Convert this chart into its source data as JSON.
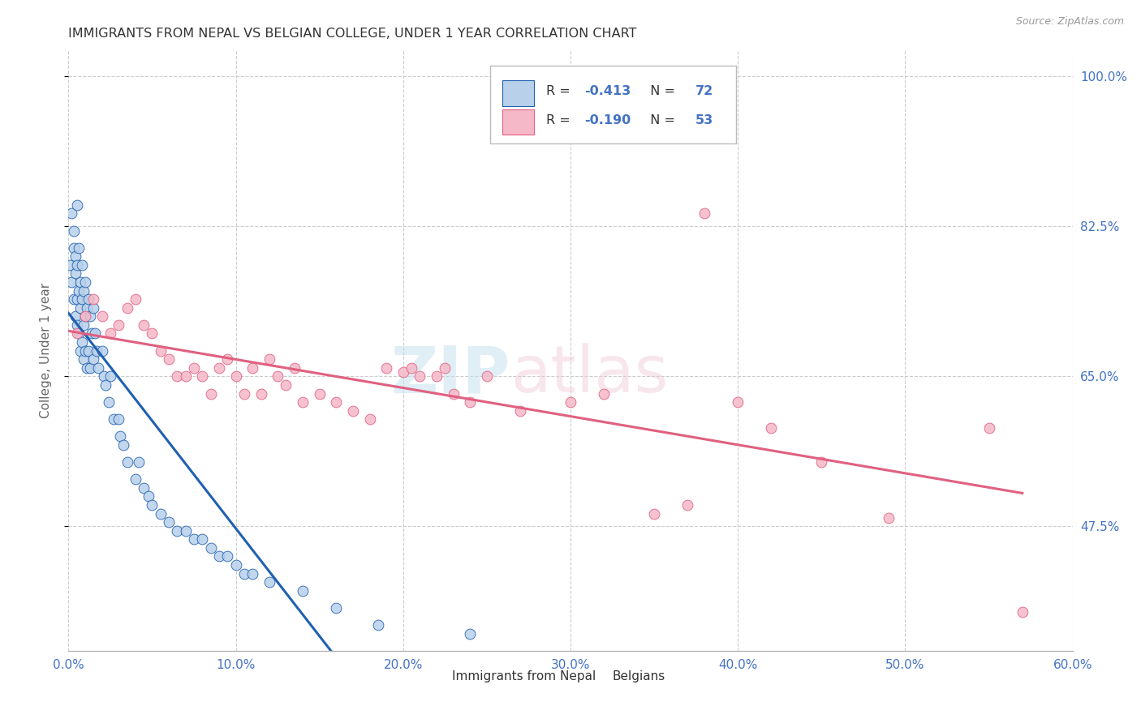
{
  "title": "IMMIGRANTS FROM NEPAL VS BELGIAN COLLEGE, UNDER 1 YEAR CORRELATION CHART",
  "source": "Source: ZipAtlas.com",
  "ylabel": "College, Under 1 year",
  "legend_label1": "Immigrants from Nepal",
  "legend_label2": "Belgians",
  "r1": "-0.413",
  "n1": "72",
  "r2": "-0.190",
  "n2": "53",
  "xmin": 0.0,
  "xmax": 60.0,
  "ymin": 33.0,
  "ymax": 103.0,
  "yticks": [
    47.5,
    65.0,
    82.5,
    100.0
  ],
  "xticks": [
    0.0,
    10.0,
    20.0,
    30.0,
    40.0,
    50.0,
    60.0
  ],
  "color_blue": "#b8d0ea",
  "color_pink": "#f5b8c8",
  "line_blue": "#2060b0",
  "line_pink": "#e06080",
  "background": "#ffffff",
  "grid_color": "#cccccc",
  "title_color": "#333333",
  "axis_label_color": "#4472c4",
  "nepal_x": [
    0.1,
    0.2,
    0.2,
    0.3,
    0.3,
    0.3,
    0.4,
    0.4,
    0.4,
    0.5,
    0.5,
    0.5,
    0.5,
    0.6,
    0.6,
    0.6,
    0.7,
    0.7,
    0.7,
    0.8,
    0.8,
    0.8,
    0.9,
    0.9,
    0.9,
    1.0,
    1.0,
    1.0,
    1.1,
    1.1,
    1.2,
    1.2,
    1.3,
    1.3,
    1.4,
    1.5,
    1.5,
    1.6,
    1.7,
    1.8,
    2.0,
    2.1,
    2.2,
    2.4,
    2.5,
    2.7,
    3.0,
    3.1,
    3.3,
    3.5,
    4.0,
    4.2,
    4.5,
    4.8,
    5.0,
    5.5,
    6.0,
    6.5,
    7.0,
    7.5,
    8.0,
    8.5,
    9.0,
    9.5,
    10.0,
    10.5,
    11.0,
    12.0,
    14.0,
    16.0,
    18.5,
    24.0
  ],
  "nepal_y": [
    78.0,
    84.0,
    76.0,
    82.0,
    80.0,
    74.0,
    79.0,
    77.0,
    72.0,
    85.0,
    78.0,
    74.0,
    71.0,
    80.0,
    75.0,
    70.0,
    76.0,
    73.0,
    68.0,
    78.0,
    74.0,
    69.0,
    75.0,
    71.0,
    67.0,
    76.0,
    72.0,
    68.0,
    73.0,
    66.0,
    74.0,
    68.0,
    72.0,
    66.0,
    70.0,
    73.0,
    67.0,
    70.0,
    68.0,
    66.0,
    68.0,
    65.0,
    64.0,
    62.0,
    65.0,
    60.0,
    60.0,
    58.0,
    57.0,
    55.0,
    53.0,
    55.0,
    52.0,
    51.0,
    50.0,
    49.0,
    48.0,
    47.0,
    47.0,
    46.0,
    46.0,
    45.0,
    44.0,
    44.0,
    43.0,
    42.0,
    42.0,
    41.0,
    40.0,
    38.0,
    36.0,
    35.0
  ],
  "belgian_x": [
    0.5,
    1.0,
    1.5,
    2.0,
    2.5,
    3.0,
    3.5,
    4.0,
    4.5,
    5.0,
    5.5,
    6.0,
    6.5,
    7.0,
    7.5,
    8.0,
    8.5,
    9.0,
    9.5,
    10.0,
    10.5,
    11.0,
    11.5,
    12.0,
    12.5,
    13.0,
    13.5,
    14.0,
    15.0,
    16.0,
    17.0,
    18.0,
    19.0,
    20.0,
    20.5,
    21.0,
    22.0,
    22.5,
    23.0,
    24.0,
    25.0,
    27.0,
    30.0,
    32.0,
    35.0,
    37.0,
    38.0,
    40.0,
    42.0,
    45.0,
    49.0,
    55.0,
    57.0
  ],
  "belgian_y": [
    70.0,
    72.0,
    74.0,
    72.0,
    70.0,
    71.0,
    73.0,
    74.0,
    71.0,
    70.0,
    68.0,
    67.0,
    65.0,
    65.0,
    66.0,
    65.0,
    63.0,
    66.0,
    67.0,
    65.0,
    63.0,
    66.0,
    63.0,
    67.0,
    65.0,
    64.0,
    66.0,
    62.0,
    63.0,
    62.0,
    61.0,
    60.0,
    66.0,
    65.5,
    66.0,
    65.0,
    65.0,
    66.0,
    63.0,
    62.0,
    65.0,
    61.0,
    62.0,
    63.0,
    49.0,
    50.0,
    84.0,
    62.0,
    59.0,
    55.0,
    48.5,
    59.0,
    37.5
  ]
}
